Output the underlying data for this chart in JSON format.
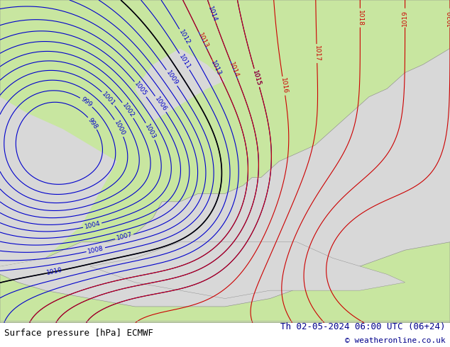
{
  "title_left": "Surface pressure [hPa] ECMWF",
  "title_right": "Th 02-05-2024 06:00 UTC (06+24)",
  "copyright": "© weatheronline.co.uk",
  "bg_color_land": "#c8e6a0",
  "bg_color_sea": "#d8d8d8",
  "bg_color_outside": "#ffffff",
  "bottom_bar_color": "#ffffff",
  "border_color": "#888888",
  "contour_blue_color": "#0000cc",
  "contour_red_color": "#cc0000",
  "contour_black_color": "#000000",
  "text_color_left": "#000000",
  "text_color_right": "#00008b",
  "fig_width": 6.34,
  "fig_height": 4.9,
  "dpi": 100
}
